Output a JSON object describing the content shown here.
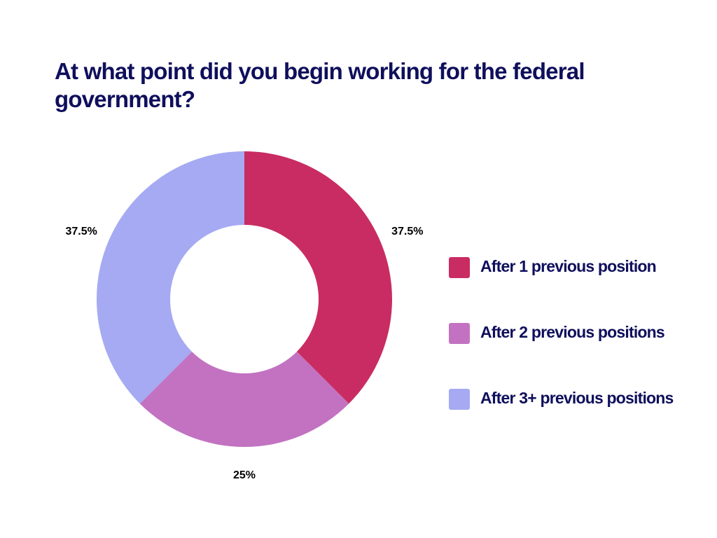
{
  "chart_data": {
    "type": "donut",
    "title": "At what point did you begin working for the federal government?",
    "categories": [
      "After 1 previous position",
      "After 2 previous positions",
      "After 3+ previous positions"
    ],
    "values": [
      37.5,
      25,
      37.5
    ],
    "value_labels": [
      "37.5%",
      "25%",
      "37.5%"
    ],
    "colors": [
      "#c92c62",
      "#c272c1",
      "#a5aaf3"
    ],
    "legend": "right"
  }
}
